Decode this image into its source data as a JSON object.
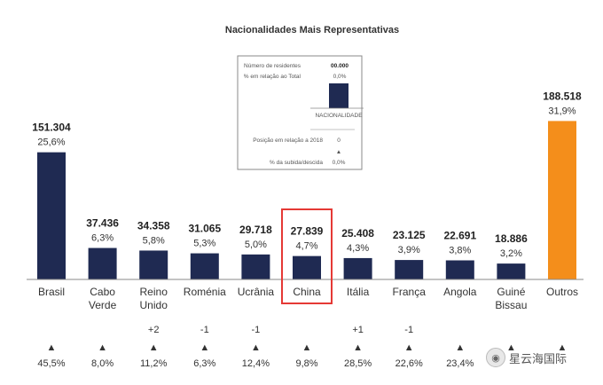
{
  "chart_data": {
    "type": "bar",
    "title": "Nacionalidades Mais Representativas",
    "categories": [
      [
        "Brasil"
      ],
      [
        "Cabo",
        "Verde"
      ],
      [
        "Reino",
        "Unido"
      ],
      [
        "Roménia"
      ],
      [
        "Ucrânia"
      ],
      [
        "China"
      ],
      [
        "Itália"
      ],
      [
        "França"
      ],
      [
        "Angola"
      ],
      [
        "Guiné",
        "Bissau"
      ],
      [
        "Outros"
      ]
    ],
    "values": [
      151304,
      37436,
      34358,
      31065,
      29718,
      27839,
      25408,
      23125,
      22691,
      18886,
      188518
    ],
    "value_labels": [
      "151.304",
      "37.436",
      "34.358",
      "31.065",
      "29.718",
      "27.839",
      "25.408",
      "23.125",
      "22.691",
      "18.886",
      "188.518"
    ],
    "pct_labels": [
      "25,6%",
      "6,3%",
      "5,8%",
      "5,3%",
      "5,0%",
      "4,7%",
      "4,3%",
      "3,9%",
      "3,8%",
      "3,2%",
      "31,9%"
    ],
    "position_change": [
      "",
      "",
      "+2",
      "-1",
      "-1",
      "",
      "+1",
      "-1",
      "",
      "",
      ""
    ],
    "change_pct": [
      "45,5%",
      "8,0%",
      "11,2%",
      "6,3%",
      "12,4%",
      "9,8%",
      "28,5%",
      "22,6%",
      "23,4%",
      "",
      ""
    ],
    "trend_symbol": "▲",
    "colors": {
      "bar": "#1f2a52",
      "highlight_bar": "#f48e1b",
      "highlight_box": "#e53935",
      "axis": "#888888"
    },
    "highlight_category": "Outros",
    "boxed_category": "China",
    "legend": {
      "residents_label": "Número de residentes",
      "residents_value": "00.000",
      "pct_label": "% em relação ao Total",
      "pct_value": "0,0%",
      "nationality_label": "NACIONALIDADE",
      "position_label": "Posição em relação a 2018",
      "position_value": "0",
      "change_label": "% da subida/descida",
      "change_value": "0,0%"
    },
    "ylim": [
      0,
      190000
    ]
  },
  "watermark": {
    "text": "星云海国际",
    "icon": "wechat-icon"
  }
}
